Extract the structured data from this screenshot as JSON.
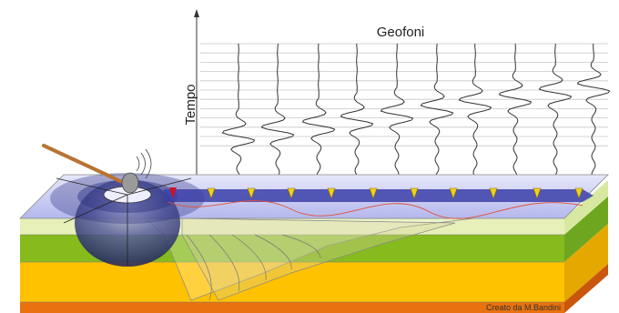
{
  "title": "Geofoni",
  "axis_label": "Tempo",
  "credit": "Creato da M.Bandini"
}
